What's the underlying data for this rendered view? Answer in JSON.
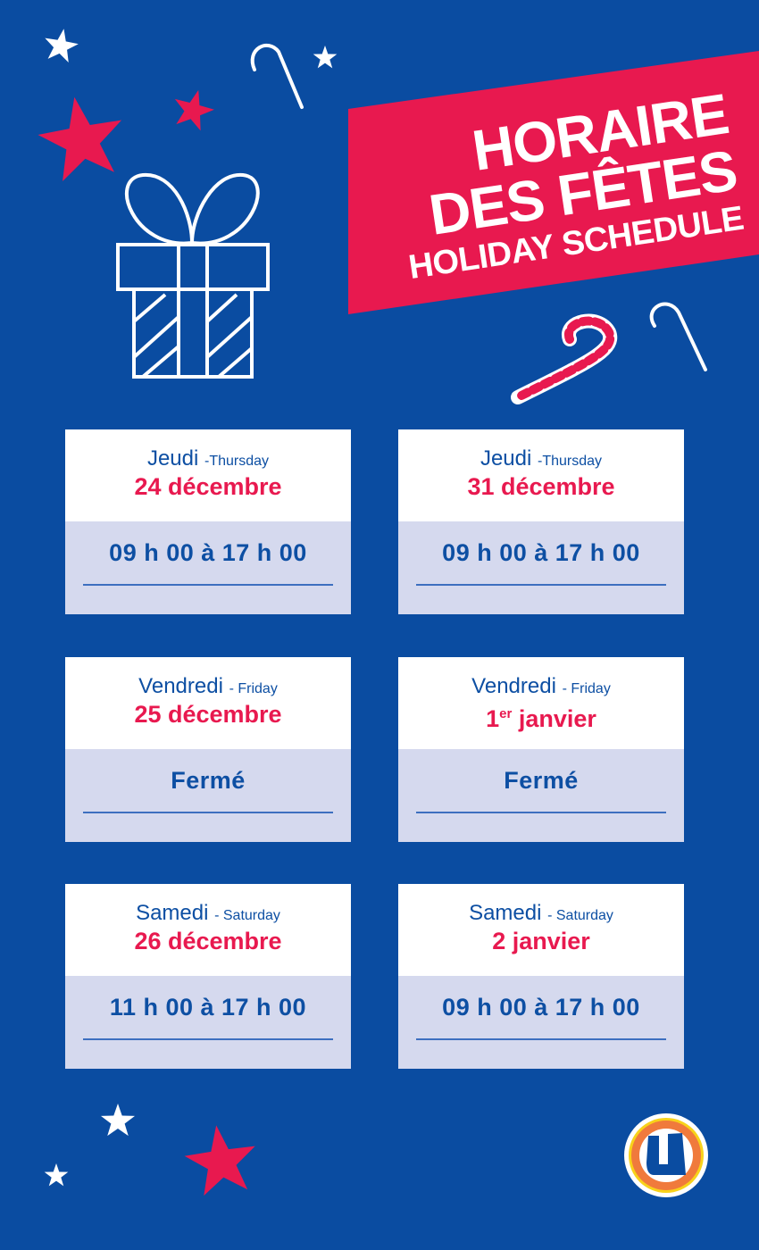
{
  "header": {
    "title_line1": "HORAIRE",
    "title_line2": "DES FÊTES",
    "title_line3": "HOLIDAY SCHEDULE"
  },
  "colors": {
    "background": "#0a4ca1",
    "accent": "#e8194f",
    "card_bottom": "#d5d9ee"
  },
  "days": [
    {
      "day_fr": "Jeudi",
      "day_en": "-Thursday",
      "date": "24 décembre",
      "hours": "09 h 00 à 17 h 00"
    },
    {
      "day_fr": "Jeudi",
      "day_en": "-Thursday",
      "date": "31 décembre",
      "hours": "09 h 00 à 17 h 00"
    },
    {
      "day_fr": "Vendredi",
      "day_en": "- Friday",
      "date_num": "1",
      "date_sup": "er",
      "date_rest": " janvier",
      "hours": "Fermé"
    },
    {
      "day_fr": "Vendredi",
      "day_en": "- Friday",
      "date": "25 décembre",
      "hours": "Fermé"
    },
    {
      "day_fr": "Samedi",
      "day_en": "- Saturday",
      "date": "26 décembre",
      "hours": "11 h 00 à 17 h 00"
    },
    {
      "day_fr": "Samedi",
      "day_en": "- Saturday",
      "date": "2 janvier",
      "hours": "09 h 00 à 17 h 00"
    }
  ],
  "logo": {
    "letter": "U"
  }
}
